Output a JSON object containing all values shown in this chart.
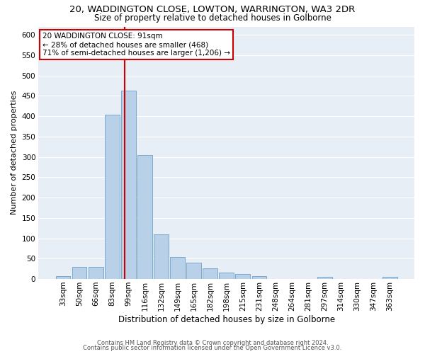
{
  "title_line1": "20, WADDINGTON CLOSE, LOWTON, WARRINGTON, WA3 2DR",
  "title_line2": "Size of property relative to detached houses in Golborne",
  "xlabel": "Distribution of detached houses by size in Golborne",
  "ylabel": "Number of detached properties",
  "bins": [
    "33sqm",
    "50sqm",
    "66sqm",
    "83sqm",
    "99sqm",
    "116sqm",
    "132sqm",
    "149sqm",
    "165sqm",
    "182sqm",
    "198sqm",
    "215sqm",
    "231sqm",
    "248sqm",
    "264sqm",
    "281sqm",
    "297sqm",
    "314sqm",
    "330sqm",
    "347sqm",
    "363sqm"
  ],
  "values": [
    7,
    30,
    30,
    404,
    463,
    305,
    110,
    54,
    40,
    27,
    15,
    12,
    7,
    0,
    0,
    0,
    5,
    0,
    0,
    0,
    5
  ],
  "bar_color": "#b8d0e8",
  "bar_edge_color": "#7aaacf",
  "annotation_text": "20 WADDINGTON CLOSE: 91sqm\n← 28% of detached houses are smaller (468)\n71% of semi-detached houses are larger (1,206) →",
  "annotation_box_color": "#ffffff",
  "annotation_border_color": "#cc0000",
  "vline_color": "#cc0000",
  "ylim": [
    0,
    620
  ],
  "yticks": [
    0,
    50,
    100,
    150,
    200,
    250,
    300,
    350,
    400,
    450,
    500,
    550,
    600
  ],
  "footnote1": "Contains HM Land Registry data © Crown copyright and database right 2024.",
  "footnote2": "Contains public sector information licensed under the Open Government Licence v3.0.",
  "plot_background_color": "#e8eef5",
  "title1_fontsize": 9.5,
  "title2_fontsize": 8.5,
  "xlabel_fontsize": 8.5,
  "ylabel_fontsize": 8,
  "tick_fontsize": 7.5,
  "footnote_fontsize": 6.0,
  "annotation_fontsize": 7.5,
  "red_line_x": 3.75
}
